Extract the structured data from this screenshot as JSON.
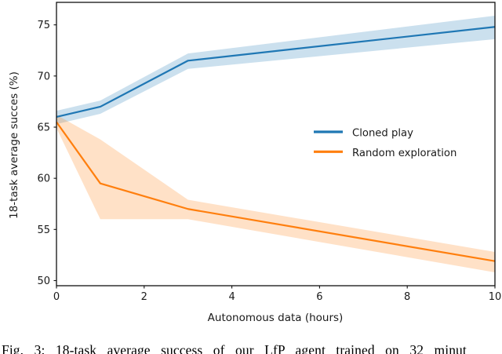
{
  "caption": {
    "text": "Fig. 3: 18-task average success of our LfP agent trained on 32 minut"
  },
  "chart_data": {
    "type": "line",
    "title": "",
    "xlabel": "Autonomous data (hours)",
    "ylabel": "18-task average succes (%)",
    "xlim": [
      0,
      10
    ],
    "ylim": [
      49.5,
      77.2
    ],
    "xticks": [
      0,
      2,
      4,
      6,
      8,
      10
    ],
    "yticks": [
      50,
      55,
      60,
      65,
      70,
      75
    ],
    "grid": false,
    "legend_position": "center-right",
    "band_opacity": 0.23,
    "series": [
      {
        "name": "Cloned play",
        "color": "#1f77b4",
        "x": [
          0,
          1,
          3,
          10
        ],
        "y": [
          66.0,
          67.0,
          71.5,
          74.8
        ],
        "band_lower": [
          65.3,
          66.3,
          70.7,
          73.6
        ],
        "band_upper": [
          66.6,
          67.6,
          72.2,
          75.9
        ]
      },
      {
        "name": "Random exploration",
        "color": "#ff7f0e",
        "x": [
          0,
          1,
          3,
          10
        ],
        "y": [
          65.5,
          59.5,
          57.0,
          51.9
        ],
        "band_lower": [
          64.9,
          56.0,
          56.0,
          50.8
        ],
        "band_upper": [
          66.2,
          63.8,
          57.9,
          52.8
        ]
      }
    ]
  }
}
